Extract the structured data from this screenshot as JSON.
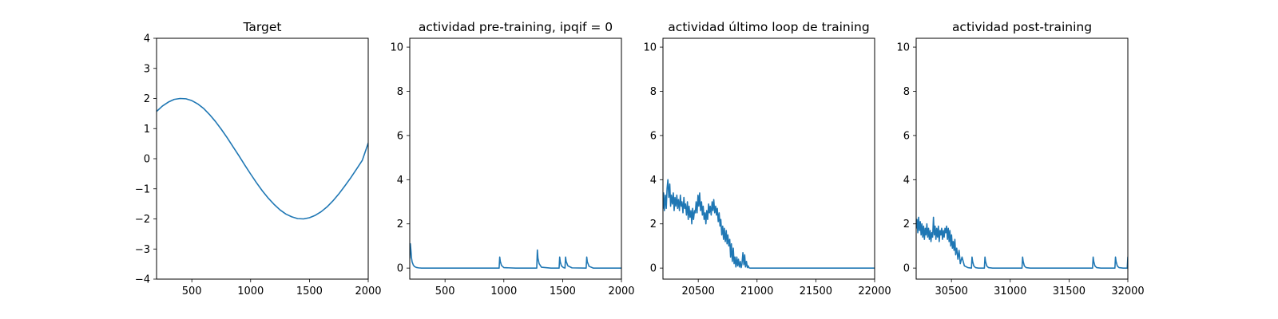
{
  "colors": {
    "series": "#1f77b4",
    "background": "#ffffff",
    "axes": "#000000"
  },
  "chart_data": [
    {
      "type": "line",
      "title": "Target",
      "xlabel": "",
      "ylabel": "",
      "xlim": [
        200,
        2000
      ],
      "ylim": [
        -4,
        4
      ],
      "xticks": [
        500,
        1000,
        1500,
        2000
      ],
      "yticks": [
        -4,
        -3,
        -2,
        -1,
        0,
        1,
        2,
        3,
        4
      ],
      "grid": false,
      "series": [
        {
          "x": [
            200,
            250,
            300,
            350,
            400,
            450,
            500,
            550,
            600,
            650,
            700,
            750,
            800,
            850,
            900,
            950,
            1000,
            1050,
            1100,
            1150,
            1200,
            1250,
            1300,
            1350,
            1400,
            1450,
            1500,
            1550,
            1600,
            1650,
            1700,
            1750,
            1800,
            1850,
            1900,
            1950,
            2000
          ],
          "y": [
            1.57,
            1.75,
            1.88,
            1.97,
            2.0,
            1.99,
            1.93,
            1.82,
            1.67,
            1.47,
            1.24,
            0.98,
            0.7,
            0.4,
            0.1,
            -0.21,
            -0.51,
            -0.8,
            -1.07,
            -1.31,
            -1.52,
            -1.7,
            -1.84,
            -1.93,
            -1.99,
            -2.0,
            -1.96,
            -1.88,
            -1.76,
            -1.6,
            -1.4,
            -1.17,
            -0.91,
            -0.64,
            -0.35,
            -0.05,
            0.52
          ]
        }
      ]
    },
    {
      "type": "line",
      "title": "actividad pre-training, ipqif = 0",
      "xlabel": "",
      "ylabel": "",
      "xlim": [
        200,
        2000
      ],
      "ylim": [
        -0.5,
        10.4
      ],
      "xticks": [
        500,
        1000,
        1500,
        2000
      ],
      "yticks": [
        0,
        2,
        4,
        6,
        8,
        10
      ],
      "grid": false,
      "series": [
        {
          "x": [
            200,
            205,
            210,
            215,
            220,
            230,
            240,
            255,
            275,
            300,
            400,
            600,
            800,
            960,
            965,
            970,
            980,
            1000,
            1100,
            1280,
            1285,
            1290,
            1300,
            1320,
            1400,
            1470,
            1475,
            1480,
            1490,
            1505,
            1520,
            1525,
            1530,
            1545,
            1580,
            1700,
            1705,
            1710,
            1725,
            1760,
            2000
          ],
          "y": [
            0.45,
            1.1,
            0.8,
            0.45,
            0.28,
            0.14,
            0.07,
            0.03,
            0.01,
            0.0,
            0.0,
            0.0,
            0.0,
            0.0,
            0.5,
            0.3,
            0.12,
            0.02,
            0.0,
            0.0,
            0.82,
            0.45,
            0.2,
            0.04,
            0.0,
            0.0,
            0.5,
            0.28,
            0.1,
            0.03,
            0.0,
            0.5,
            0.3,
            0.1,
            0.01,
            0.0,
            0.5,
            0.28,
            0.08,
            0.0,
            0.0
          ]
        }
      ]
    },
    {
      "type": "line",
      "title": "actividad último loop de training",
      "xlabel": "",
      "ylabel": "",
      "xlim": [
        20200,
        22000
      ],
      "ylim": [
        -0.5,
        10.4
      ],
      "xticks": [
        20500,
        21000,
        21500,
        22000
      ],
      "yticks": [
        0,
        2,
        4,
        6,
        8,
        10
      ],
      "grid": false,
      "series": [
        {
          "x": [
            20200,
            20205,
            20212,
            20220,
            20228,
            20235,
            20242,
            20250,
            20258,
            20265,
            20272,
            20280,
            20288,
            20295,
            20302,
            20310,
            20318,
            20325,
            20332,
            20340,
            20348,
            20355,
            20362,
            20370,
            20378,
            20385,
            20392,
            20400,
            20408,
            20415,
            20422,
            20430,
            20438,
            20445,
            20452,
            20460,
            20468,
            20475,
            20482,
            20490,
            20498,
            20505,
            20512,
            20520,
            20528,
            20535,
            20542,
            20550,
            20558,
            20565,
            20572,
            20580,
            20588,
            20595,
            20602,
            20610,
            20618,
            20625,
            20632,
            20640,
            20648,
            20655,
            20662,
            20670,
            20678,
            20685,
            20692,
            20700,
            20708,
            20715,
            20722,
            20730,
            20738,
            20745,
            20752,
            20760,
            20768,
            20775,
            20782,
            20790,
            20798,
            20805,
            20812,
            20820,
            20828,
            20835,
            20842,
            20850,
            20858,
            20865,
            20872,
            20880,
            20888,
            20895,
            20902,
            20910,
            20918,
            20925,
            20932,
            20940,
            20950,
            20960,
            20975,
            21000,
            21100,
            21500,
            22000
          ],
          "y": [
            2.7,
            3.4,
            2.6,
            3.3,
            2.7,
            3.6,
            4.0,
            3.2,
            3.8,
            2.8,
            3.3,
            2.9,
            3.4,
            2.6,
            3.2,
            2.8,
            3.3,
            2.7,
            3.1,
            2.6,
            3.3,
            2.8,
            3.0,
            2.5,
            3.2,
            2.7,
            2.9,
            2.4,
            3.0,
            2.2,
            2.8,
            2.3,
            2.6,
            2.0,
            2.7,
            2.2,
            2.6,
            2.5,
            3.0,
            2.5,
            3.3,
            2.8,
            3.4,
            2.6,
            3.0,
            2.4,
            2.8,
            2.2,
            2.5,
            2.0,
            2.6,
            2.2,
            2.9,
            2.5,
            2.8,
            2.4,
            3.0,
            2.6,
            3.1,
            2.5,
            2.8,
            2.4,
            2.7,
            2.1,
            2.5,
            1.9,
            2.2,
            1.5,
            1.9,
            1.3,
            1.8,
            1.2,
            1.7,
            1.1,
            1.5,
            1.0,
            1.3,
            0.5,
            1.1,
            0.3,
            0.9,
            0.2,
            0.5,
            0.05,
            0.5,
            0.1,
            0.4,
            0.05,
            0.3,
            0.02,
            0.2,
            0.7,
            0.15,
            0.6,
            0.05,
            0.3,
            0.02,
            0.1,
            0.01,
            0.0,
            0.0,
            0.0,
            0.0,
            0.0,
            0.0,
            0.0,
            0.0
          ]
        }
      ]
    },
    {
      "type": "line",
      "title": "actividad post-training",
      "xlabel": "",
      "ylabel": "",
      "xlim": [
        30200,
        32000
      ],
      "ylim": [
        -0.5,
        10.4
      ],
      "xticks": [
        30500,
        31000,
        31500,
        32000
      ],
      "yticks": [
        0,
        2,
        4,
        6,
        8,
        10
      ],
      "grid": false,
      "series": [
        {
          "x": [
            30200,
            30207,
            30214,
            30221,
            30228,
            30235,
            30242,
            30249,
            30256,
            30263,
            30270,
            30277,
            30284,
            30291,
            30298,
            30305,
            30312,
            30319,
            30326,
            30333,
            30340,
            30347,
            30354,
            30361,
            30368,
            30375,
            30382,
            30389,
            30396,
            30403,
            30410,
            30417,
            30424,
            30431,
            30438,
            30445,
            30452,
            30459,
            30466,
            30473,
            30480,
            30487,
            30494,
            30501,
            30508,
            30515,
            30522,
            30529,
            30536,
            30545,
            30555,
            30565,
            30575,
            30590,
            30610,
            30640,
            30670,
            30675,
            30680,
            30690,
            30705,
            30730,
            30780,
            30785,
            30790,
            30800,
            30815,
            30850,
            31100,
            31105,
            31110,
            31120,
            31135,
            31170,
            31700,
            31705,
            31710,
            31720,
            31735,
            31770,
            31890,
            31895,
            31900,
            31910,
            31925,
            31960,
            31995,
            32000
          ],
          "y": [
            1.8,
            2.2,
            1.6,
            2.3,
            1.7,
            2.1,
            1.5,
            2.0,
            1.4,
            1.9,
            1.3,
            1.8,
            1.5,
            2.0,
            1.4,
            1.8,
            1.3,
            1.7,
            1.2,
            1.6,
            1.4,
            2.3,
            1.5,
            1.9,
            1.3,
            1.8,
            1.4,
            1.9,
            1.2,
            1.7,
            1.5,
            1.8,
            1.3,
            1.7,
            1.4,
            1.8,
            1.6,
            1.9,
            1.3,
            1.8,
            1.2,
            1.7,
            1.0,
            1.5,
            0.9,
            1.2,
            0.8,
            1.3,
            0.6,
            0.9,
            0.4,
            0.8,
            0.2,
            0.5,
            0.1,
            0.02,
            0.0,
            0.5,
            0.3,
            0.1,
            0.02,
            0.0,
            0.0,
            0.5,
            0.3,
            0.1,
            0.02,
            0.0,
            0.0,
            0.5,
            0.3,
            0.1,
            0.02,
            0.0,
            0.0,
            0.5,
            0.3,
            0.1,
            0.02,
            0.0,
            0.0,
            0.5,
            0.3,
            0.1,
            0.02,
            0.0,
            0.0,
            0.5
          ]
        }
      ]
    }
  ]
}
